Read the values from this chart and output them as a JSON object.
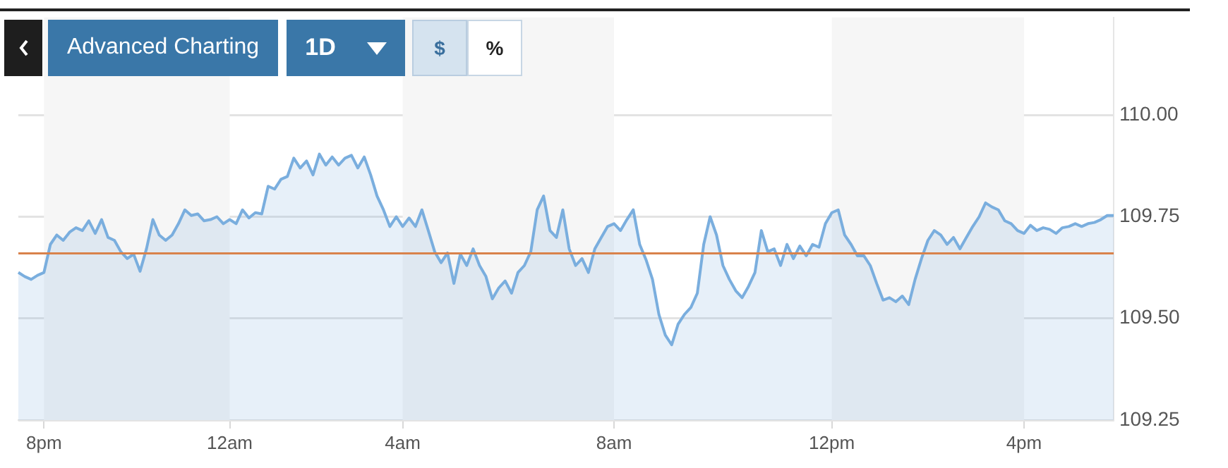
{
  "chart_data": {
    "type": "area",
    "categories": [
      null,
      null,
      null,
      null,
      "8pm",
      null,
      null,
      null,
      null,
      null,
      null,
      null,
      null,
      null,
      null,
      null,
      null,
      null,
      null,
      null,
      null,
      null,
      null,
      null,
      null,
      null,
      null,
      null,
      null,
      null,
      null,
      null,
      null,
      "12am",
      null,
      null,
      null,
      null,
      null,
      null,
      null,
      null,
      null,
      null,
      null,
      null,
      null,
      null,
      null,
      null,
      null,
      null,
      null,
      null,
      null,
      null,
      null,
      null,
      null,
      null,
      "4am",
      null,
      null,
      null,
      null,
      null,
      null,
      null,
      null,
      null,
      null,
      null,
      null,
      null,
      null,
      null,
      null,
      null,
      null,
      null,
      null,
      null,
      null,
      null,
      null,
      null,
      null,
      null,
      null,
      null,
      null,
      null,
      null,
      "8am",
      null,
      null,
      null,
      null,
      null,
      null,
      null,
      null,
      null,
      null,
      null,
      null,
      null,
      null,
      null,
      null,
      null,
      null,
      null,
      null,
      null,
      null,
      null,
      null,
      null,
      null,
      null,
      null,
      null,
      null,
      null,
      null,
      null,
      "12pm",
      null,
      null,
      null,
      null,
      null,
      null,
      null,
      null,
      null,
      null,
      null,
      null,
      null,
      null,
      null,
      null,
      null,
      null,
      null,
      null,
      null,
      null,
      null,
      null,
      null,
      null,
      null,
      null,
      null,
      "4pm",
      null,
      null,
      null,
      null,
      null,
      null,
      null,
      null,
      null,
      null,
      null,
      null,
      null,
      null
    ],
    "series": [
      {
        "color": "#7aaede",
        "values": [
          109.613,
          109.603,
          109.596,
          109.606,
          109.613,
          109.682,
          109.705,
          109.692,
          109.712,
          109.723,
          109.716,
          109.74,
          109.709,
          109.743,
          109.699,
          109.692,
          109.664,
          109.647,
          109.658,
          109.616,
          109.671,
          109.743,
          109.705,
          109.692,
          109.705,
          109.733,
          109.767,
          109.753,
          109.757,
          109.74,
          109.743,
          109.75,
          109.733,
          109.743,
          109.733,
          109.767,
          109.747,
          109.76,
          109.757,
          109.825,
          109.818,
          109.842,
          109.849,
          109.894,
          109.87,
          109.887,
          109.853,
          109.904,
          109.877,
          109.897,
          109.877,
          109.894,
          109.901,
          109.87,
          109.897,
          109.853,
          109.801,
          109.767,
          109.726,
          109.75,
          109.726,
          109.747,
          109.726,
          109.767,
          109.716,
          109.664,
          109.637,
          109.661,
          109.586,
          109.658,
          109.63,
          109.671,
          109.63,
          109.603,
          109.548,
          109.575,
          109.592,
          109.562,
          109.613,
          109.63,
          109.664,
          109.767,
          109.801,
          109.716,
          109.699,
          109.767,
          109.671,
          109.63,
          109.647,
          109.613,
          109.671,
          109.699,
          109.726,
          109.733,
          109.716,
          109.743,
          109.767,
          109.682,
          109.644,
          109.596,
          109.51,
          109.459,
          109.435,
          109.486,
          109.51,
          109.527,
          109.562,
          109.682,
          109.75,
          109.705,
          109.63,
          109.596,
          109.568,
          109.551,
          109.579,
          109.613,
          109.716,
          109.664,
          109.671,
          109.63,
          109.682,
          109.647,
          109.678,
          109.654,
          109.682,
          109.675,
          109.733,
          109.76,
          109.767,
          109.705,
          109.682,
          109.654,
          109.654,
          109.63,
          109.586,
          109.545,
          109.551,
          109.541,
          109.555,
          109.534,
          109.596,
          109.647,
          109.692,
          109.716,
          109.705,
          109.682,
          109.699,
          109.671,
          109.699,
          109.726,
          109.75,
          109.784,
          109.774,
          109.767,
          109.74,
          109.733,
          109.716,
          109.709,
          109.729,
          109.716,
          109.723,
          109.719,
          109.709,
          109.723,
          109.726,
          109.733,
          109.726,
          109.733,
          109.736,
          109.743,
          109.753,
          109.753
        ]
      }
    ],
    "ylim": [
      109.25,
      110.24
    ],
    "yticks": [
      {
        "value": 109.25,
        "label": "109.25"
      },
      {
        "value": 109.5,
        "label": "109.50"
      },
      {
        "value": 109.75,
        "label": "109.75"
      },
      {
        "value": 110,
        "label": "110.00"
      }
    ],
    "ref_lines": [
      {
        "axis": "y",
        "value": 109.66,
        "color": "#d9824b"
      }
    ],
    "bands": [
      {
        "axis": "x",
        "from": "8pm",
        "to": "12am",
        "color": "#f6f6f6"
      },
      {
        "axis": "x",
        "from": "4am",
        "to": "8am",
        "color": "#f6f6f6"
      },
      {
        "axis": "x",
        "from": "12pm",
        "to": "4pm",
        "color": "#f6f6f6"
      }
    ],
    "annotations": [
      "Advanced Charting",
      "1D",
      "$",
      "%"
    ],
    "grid": "y",
    "legend": false,
    "marker": "none",
    "line_style": "solid"
  }
}
